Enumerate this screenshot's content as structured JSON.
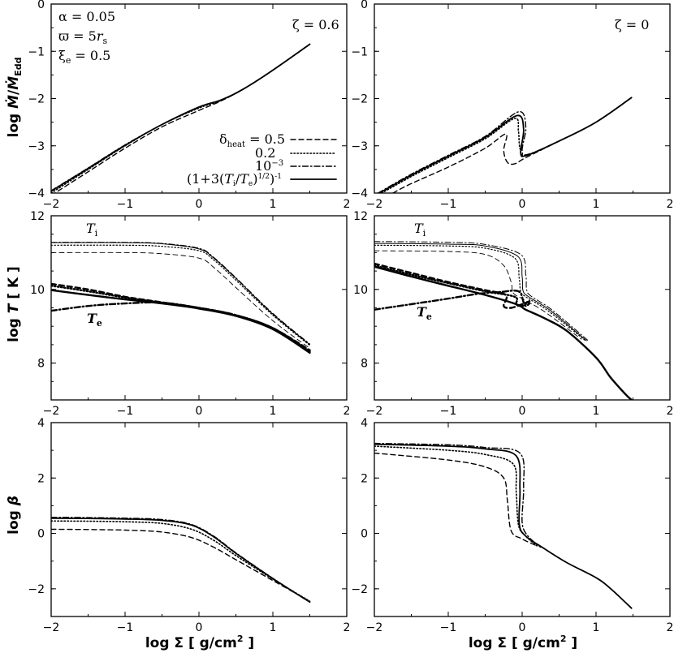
{
  "chart_data": [
    {
      "panel": "top-left",
      "type": "line",
      "ylabel": "log Ṁ/Ṁ_Edd",
      "xlim": [
        -2,
        2
      ],
      "ylim": [
        -4,
        0
      ],
      "yticks": [
        "0",
        "−1",
        "−2",
        "−3",
        "−4"
      ],
      "xticks": [
        "−2",
        "−1",
        "0",
        "1",
        "2"
      ],
      "annotations": [
        "α = 0.05",
        "ϖ = 5r_s",
        "ξ_e = 0.5",
        "ζ = 0.6"
      ],
      "legend": {
        "placement": "bottom-right",
        "entries": [
          "δ_heat = 0.5",
          "0.2",
          "10^−3",
          "(1+3(T_i/T_e)^1/2)^−1"
        ]
      },
      "series": [
        {
          "name": "δ_heat = 0.5",
          "dash": "dashed",
          "width": 1.4,
          "x": [
            -2,
            -1.5,
            -1,
            -0.5,
            0,
            0.3,
            0.6,
            1,
            1.5
          ],
          "y": [
            -4.05,
            -3.55,
            -3.05,
            -2.6,
            -2.25,
            -2.05,
            -1.8,
            -1.4,
            -0.85
          ]
        },
        {
          "name": "0.2",
          "dash": "dotted",
          "width": 1.6,
          "x": [
            -2,
            -1.5,
            -1,
            -0.5,
            0,
            0.3,
            0.6,
            1,
            1.5
          ],
          "y": [
            -4.0,
            -3.5,
            -3.0,
            -2.55,
            -2.2,
            -2.04,
            -1.8,
            -1.4,
            -0.85
          ]
        },
        {
          "name": "10^−3",
          "dash": "dashdot",
          "width": 1.4,
          "x": [
            -2,
            -1.5,
            -1,
            -0.5,
            0,
            0.3,
            0.6,
            1,
            1.5
          ],
          "y": [
            -3.95,
            -3.47,
            -2.98,
            -2.55,
            -2.18,
            -2.03,
            -1.8,
            -1.4,
            -0.85
          ]
        },
        {
          "name": "(1+3(T_i/T_e)^1/2)^−1",
          "dash": "solid",
          "width": 1.8,
          "x": [
            -2,
            -1.5,
            -1,
            -0.5,
            0,
            0.3,
            0.6,
            1,
            1.5
          ],
          "y": [
            -3.96,
            -3.48,
            -2.99,
            -2.55,
            -2.18,
            -2.03,
            -1.8,
            -1.4,
            -0.85
          ]
        }
      ]
    },
    {
      "panel": "top-right",
      "type": "line",
      "ylabel": "",
      "xlim": [
        -2,
        2
      ],
      "ylim": [
        -4,
        0
      ],
      "yticks": [
        "0",
        "−1",
        "−2",
        "−3",
        "−4"
      ],
      "xticks": [
        "−2",
        "−1",
        "0",
        "1",
        "2"
      ],
      "annotations": [
        "ζ = 0"
      ],
      "series": [
        {
          "name": "δ_heat = 0.5",
          "dash": "dashed",
          "width": 1.4,
          "x": [
            -1.75,
            -1.5,
            -1,
            -0.5,
            -0.22,
            -0.25,
            -0.2,
            -0.1,
            0.05,
            0.5,
            1.0,
            1.48
          ],
          "y": [
            -4.0,
            -3.8,
            -3.45,
            -3.05,
            -2.75,
            -3.1,
            -3.35,
            -3.38,
            -3.25,
            -2.9,
            -2.5,
            -1.98
          ]
        },
        {
          "name": "0.2",
          "dash": "dotted",
          "width": 1.6,
          "x": [
            -1.9,
            -1.5,
            -1,
            -0.5,
            -0.1,
            -0.05,
            -0.03,
            0.05,
            0.5,
            1.0,
            1.48
          ],
          "y": [
            -4.0,
            -3.65,
            -3.25,
            -2.85,
            -2.42,
            -2.7,
            -3.05,
            -3.2,
            -2.9,
            -2.5,
            -1.98
          ]
        },
        {
          "name": "10^−3",
          "dash": "dashdot",
          "width": 1.4,
          "x": [
            -1.95,
            -1.5,
            -1,
            -0.5,
            -0.05,
            0.05,
            0.0,
            0.08,
            0.5,
            1.0,
            1.48
          ],
          "y": [
            -4.0,
            -3.6,
            -3.2,
            -2.8,
            -2.28,
            -2.6,
            -3.1,
            -3.18,
            -2.9,
            -2.5,
            -1.98
          ]
        },
        {
          "name": "(1+3(T_i/T_e)^1/2)^−1",
          "dash": "solid",
          "width": 1.8,
          "x": [
            -1.93,
            -1.5,
            -1,
            -0.5,
            -0.07,
            0.02,
            -0.02,
            0.07,
            0.5,
            1.0,
            1.48
          ],
          "y": [
            -4.0,
            -3.62,
            -3.22,
            -2.82,
            -2.36,
            -2.65,
            -3.15,
            -3.2,
            -2.9,
            -2.5,
            -1.98
          ]
        }
      ]
    },
    {
      "panel": "middle-left",
      "type": "line",
      "ylabel": "log T [ K ]",
      "xlim": [
        -2,
        2
      ],
      "ylim": [
        7,
        12
      ],
      "yticks": [
        "12",
        "10",
        "8"
      ],
      "xticks": [
        "−2",
        "−1",
        "0",
        "1",
        "2"
      ],
      "annotations": [
        "T_i",
        "T_e"
      ],
      "series": [
        {
          "name": "T_i δ_heat = 0.5",
          "dash": "dashed",
          "width": 0.9,
          "x": [
            -2,
            -1,
            -0.5,
            0,
            0.2,
            0.5,
            1.0,
            1.5
          ],
          "y": [
            11.0,
            11.0,
            10.97,
            10.85,
            10.6,
            10.05,
            9.15,
            8.4
          ]
        },
        {
          "name": "T_i 0.2",
          "dash": "dotted",
          "width": 1.2,
          "x": [
            -2,
            -1,
            -0.5,
            0,
            0.2,
            0.5,
            1.0,
            1.5
          ],
          "y": [
            11.2,
            11.2,
            11.17,
            11.05,
            10.8,
            10.25,
            9.3,
            8.48
          ]
        },
        {
          "name": "T_i 10^−3",
          "dash": "dashdot",
          "width": 1.0,
          "x": [
            -2,
            -1,
            -0.5,
            0,
            0.2,
            0.5,
            1.0,
            1.5
          ],
          "y": [
            11.28,
            11.28,
            11.25,
            11.12,
            10.87,
            10.32,
            9.35,
            8.52
          ]
        },
        {
          "name": "T_i (1+3(T_i/T_e)^1/2)^−1",
          "dash": "solid",
          "width": 1.0,
          "x": [
            -2,
            -1,
            -0.5,
            0,
            0.2,
            0.5,
            1.0,
            1.5
          ],
          "y": [
            11.27,
            11.27,
            11.24,
            11.1,
            10.85,
            10.3,
            9.33,
            8.5
          ]
        },
        {
          "name": "T_e δ_heat = 0.5",
          "dash": "dashed",
          "width": 2.4,
          "x": [
            -2,
            -1.5,
            -1,
            -0.5,
            0,
            0.5,
            1.0,
            1.5
          ],
          "y": [
            10.15,
            10.0,
            9.8,
            9.65,
            9.5,
            9.3,
            8.95,
            8.35
          ]
        },
        {
          "name": "T_e 0.2",
          "dash": "dotted",
          "width": 2.4,
          "x": [
            -2,
            -1.5,
            -1,
            -0.5,
            0,
            0.5,
            1.0,
            1.5
          ],
          "y": [
            10.1,
            9.95,
            9.78,
            9.64,
            9.5,
            9.3,
            8.95,
            8.32
          ]
        },
        {
          "name": "T_e 10^−3",
          "dash": "dashdot",
          "width": 2.4,
          "x": [
            -2,
            -1.5,
            -1,
            -0.5,
            0,
            0.5,
            1.0,
            1.5
          ],
          "y": [
            9.42,
            9.55,
            9.62,
            9.64,
            9.5,
            9.3,
            8.95,
            8.3
          ]
        },
        {
          "name": "T_e (1+3(T_i/T_e)^1/2)^−1",
          "dash": "solid",
          "width": 2.4,
          "x": [
            -2,
            -1.5,
            -1,
            -0.5,
            0,
            0.5,
            1.0,
            1.5
          ],
          "y": [
            9.98,
            9.85,
            9.73,
            9.62,
            9.48,
            9.28,
            8.92,
            8.28
          ]
        }
      ]
    },
    {
      "panel": "middle-right",
      "type": "line",
      "ylabel": "",
      "xlim": [
        -2,
        2
      ],
      "ylim": [
        7,
        12
      ],
      "yticks": [
        "12",
        "10",
        "8"
      ],
      "xticks": [
        "−2",
        "−1",
        "0",
        "1",
        "2"
      ],
      "annotations": [
        "T_i",
        "T_e"
      ],
      "series": [
        {
          "name": "T_i δ_heat = 0.5",
          "dash": "dashed",
          "width": 0.9,
          "x": [
            -2,
            -1,
            -0.5,
            -0.25,
            -0.15,
            -0.12,
            0.0,
            0.3,
            0.8
          ],
          "y": [
            11.05,
            11.03,
            10.95,
            10.65,
            10.2,
            9.9,
            9.75,
            9.4,
            8.65
          ]
        },
        {
          "name": "T_i 0.2",
          "dash": "dotted",
          "width": 1.2,
          "x": [
            -2,
            -1,
            -0.5,
            -0.1,
            -0.04,
            -0.02,
            0.05,
            0.35,
            0.85
          ],
          "y": [
            11.2,
            11.18,
            11.12,
            10.85,
            10.3,
            9.95,
            9.8,
            9.42,
            8.62
          ]
        },
        {
          "name": "T_i 10^−3",
          "dash": "dashdot",
          "width": 1.0,
          "x": [
            -2,
            -1,
            -0.5,
            -0.02,
            0.05,
            0.06,
            0.12,
            0.4,
            0.9
          ],
          "y": [
            11.3,
            11.28,
            11.22,
            10.95,
            10.4,
            10.0,
            9.82,
            9.45,
            8.6
          ]
        },
        {
          "name": "T_i (1+3(T_i/T_e)^1/2)^−1",
          "dash": "solid",
          "width": 1.0,
          "x": [
            -2,
            -1,
            -0.5,
            -0.06,
            0.0,
            0.01,
            0.08,
            0.38,
            0.87
          ],
          "y": [
            11.25,
            11.23,
            11.18,
            10.9,
            10.35,
            9.98,
            9.81,
            9.43,
            8.61
          ]
        },
        {
          "name": "T_e δ_heat = 0.5",
          "dash": "dashed",
          "width": 2.4,
          "x": [
            -2,
            -1.5,
            -1,
            -0.5,
            -0.22,
            -0.25,
            -0.15,
            0.0,
            0.1
          ],
          "y": [
            10.7,
            10.45,
            10.2,
            9.98,
            9.85,
            9.55,
            9.5,
            9.6,
            9.68
          ]
        },
        {
          "name": "T_e 0.2",
          "dash": "dotted",
          "width": 2.4,
          "x": [
            -2,
            -1.5,
            -1,
            -0.5,
            -0.1,
            -0.08,
            0.0,
            0.08
          ],
          "y": [
            10.65,
            10.4,
            10.17,
            9.95,
            9.8,
            9.6,
            9.55,
            9.65
          ]
        },
        {
          "name": "T_e 10^−3",
          "dash": "dashdot",
          "width": 2.4,
          "x": [
            -2,
            -1.5,
            -1,
            -0.6,
            -0.3,
            -0.05,
            0.02,
            0.05,
            0.1
          ],
          "y": [
            9.45,
            9.6,
            9.75,
            9.88,
            9.93,
            9.95,
            9.65,
            9.55,
            9.62
          ]
        },
        {
          "name": "T_e (1+3(T_i/T_e)^1/2)^−1",
          "dash": "solid",
          "width": 2.4,
          "x": [
            -2,
            -1.5,
            -1,
            -0.5,
            -0.08,
            0.05,
            0.3,
            0.6,
            1.0,
            1.2,
            1.4,
            1.48
          ],
          "y": [
            10.62,
            10.35,
            10.1,
            9.85,
            9.6,
            9.45,
            9.22,
            8.88,
            8.15,
            7.6,
            7.15,
            7.0
          ]
        }
      ]
    },
    {
      "panel": "bottom-left",
      "type": "line",
      "ylabel": "log β",
      "xlabel": "log Σ [ g/cm² ]",
      "xlim": [
        -2,
        2
      ],
      "ylim": [
        -3,
        4
      ],
      "yticks": [
        "4",
        "2",
        "0",
        "−2"
      ],
      "xticks": [
        "−2",
        "−1",
        "0",
        "1",
        "2"
      ],
      "series": [
        {
          "name": "δ_heat = 0.5",
          "dash": "dashed",
          "width": 1.4,
          "x": [
            -2,
            -1.5,
            -1,
            -0.5,
            -0.1,
            0.2,
            0.5,
            1.0,
            1.5
          ],
          "y": [
            0.15,
            0.14,
            0.12,
            0.05,
            -0.15,
            -0.5,
            -0.95,
            -1.7,
            -2.45
          ]
        },
        {
          "name": "0.2",
          "dash": "dotted",
          "width": 1.6,
          "x": [
            -2,
            -1.5,
            -1,
            -0.5,
            -0.1,
            0.2,
            0.5,
            1.0,
            1.5
          ],
          "y": [
            0.45,
            0.44,
            0.42,
            0.36,
            0.15,
            -0.25,
            -0.8,
            -1.65,
            -2.45
          ]
        },
        {
          "name": "10^−3",
          "dash": "dashdot",
          "width": 1.4,
          "x": [
            -2,
            -1.5,
            -1,
            -0.5,
            -0.1,
            0.2,
            0.5,
            1.0,
            1.5
          ],
          "y": [
            0.58,
            0.57,
            0.55,
            0.5,
            0.32,
            -0.1,
            -0.7,
            -1.62,
            -2.48
          ]
        },
        {
          "name": "(1+3(T_i/T_e)^1/2)^−1",
          "dash": "solid",
          "width": 1.8,
          "x": [
            -2,
            -1.5,
            -1,
            -0.5,
            -0.1,
            0.2,
            0.5,
            1.0,
            1.5
          ],
          "y": [
            0.55,
            0.54,
            0.52,
            0.47,
            0.3,
            -0.12,
            -0.72,
            -1.63,
            -2.48
          ]
        }
      ]
    },
    {
      "panel": "bottom-right",
      "type": "line",
      "ylabel": "",
      "xlabel": "log Σ [ g/cm² ]",
      "xlim": [
        -2,
        2
      ],
      "ylim": [
        -3,
        4
      ],
      "yticks": [
        "4",
        "2",
        "0",
        "−2"
      ],
      "xticks": [
        "−2",
        "−1",
        "0",
        "1",
        "2"
      ],
      "series": [
        {
          "name": "δ_heat = 0.5",
          "dash": "dashed",
          "width": 1.4,
          "x": [
            -2,
            -1,
            -0.5,
            -0.25,
            -0.2,
            -0.15,
            0.0,
            0.2
          ],
          "y": [
            2.9,
            2.65,
            2.4,
            2.0,
            1.2,
            0.1,
            -0.2,
            -0.45
          ]
        },
        {
          "name": "0.2",
          "dash": "dotted",
          "width": 1.6,
          "x": [
            -2,
            -1,
            -0.5,
            -0.12,
            -0.08,
            -0.05,
            0.05,
            0.2
          ],
          "y": [
            3.15,
            3.0,
            2.85,
            2.5,
            1.5,
            0.3,
            -0.1,
            -0.45
          ]
        },
        {
          "name": "10^−3",
          "dash": "dashdot",
          "width": 1.4,
          "x": [
            -2,
            -1,
            -0.5,
            -0.03,
            0.02,
            0.0,
            0.08,
            0.25
          ],
          "y": [
            3.25,
            3.2,
            3.1,
            2.9,
            1.7,
            0.4,
            -0.1,
            -0.5
          ]
        },
        {
          "name": "(1+3(T_i/T_e)^1/2)^−1",
          "dash": "solid",
          "width": 1.8,
          "x": [
            -2,
            -1,
            -0.5,
            -0.08,
            -0.03,
            -0.04,
            0.05,
            0.3,
            0.6,
            1.0,
            1.2,
            1.48
          ],
          "y": [
            3.22,
            3.15,
            3.05,
            2.8,
            1.6,
            0.35,
            -0.1,
            -0.55,
            -1.05,
            -1.6,
            -2.0,
            -2.7
          ]
        }
      ]
    }
  ]
}
